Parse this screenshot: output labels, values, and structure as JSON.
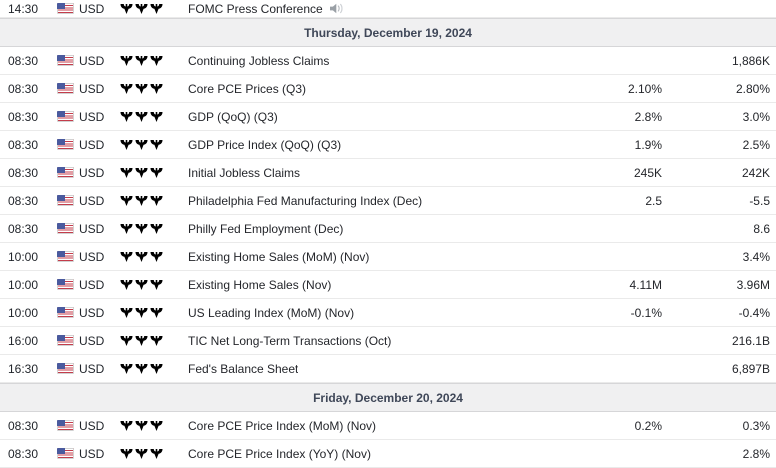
{
  "calendar": {
    "currency_default": "USD",
    "colors": {
      "bull_filled": "#8b9095",
      "bull_empty": "#d9dbde",
      "day_header_bg": "#f0f0f1",
      "day_header_text": "#3f4758",
      "row_border": "#eaeaea",
      "flag_red": "#c43c4b",
      "flag_blue": "#4a5a9e",
      "speech_icon_color": "#9aa0a6"
    },
    "rows": [
      {
        "type": "event",
        "time": "14:30",
        "currency": "USD",
        "flag": "us-flag-icon",
        "importance": 3,
        "event": "FOMC Press Conference",
        "speech": true,
        "forecast": "",
        "previous": "",
        "partial": true
      },
      {
        "type": "day",
        "label": "Thursday, December 19, 2024"
      },
      {
        "type": "event",
        "time": "08:30",
        "currency": "USD",
        "flag": "us-flag-icon",
        "importance": 2,
        "event": "Continuing Jobless Claims",
        "speech": false,
        "forecast": "",
        "previous": "1,886K"
      },
      {
        "type": "event",
        "time": "08:30",
        "currency": "USD",
        "flag": "us-flag-icon",
        "importance": 2,
        "event": "Core PCE Prices (Q3)",
        "speech": false,
        "forecast": "2.10%",
        "previous": "2.80%"
      },
      {
        "type": "event",
        "time": "08:30",
        "currency": "USD",
        "flag": "us-flag-icon",
        "importance": 3,
        "event": "GDP (QoQ) (Q3)",
        "speech": false,
        "forecast": "2.8%",
        "previous": "3.0%"
      },
      {
        "type": "event",
        "time": "08:30",
        "currency": "USD",
        "flag": "us-flag-icon",
        "importance": 2,
        "event": "GDP Price Index (QoQ) (Q3)",
        "speech": false,
        "forecast": "1.9%",
        "previous": "2.5%"
      },
      {
        "type": "event",
        "time": "08:30",
        "currency": "USD",
        "flag": "us-flag-icon",
        "importance": 3,
        "event": "Initial Jobless Claims",
        "speech": false,
        "forecast": "245K",
        "previous": "242K"
      },
      {
        "type": "event",
        "time": "08:30",
        "currency": "USD",
        "flag": "us-flag-icon",
        "importance": 3,
        "event": "Philadelphia Fed Manufacturing Index (Dec)",
        "speech": false,
        "forecast": "2.5",
        "previous": "-5.5"
      },
      {
        "type": "event",
        "time": "08:30",
        "currency": "USD",
        "flag": "us-flag-icon",
        "importance": 2,
        "event": "Philly Fed Employment (Dec)",
        "speech": false,
        "forecast": "",
        "previous": "8.6"
      },
      {
        "type": "event",
        "time": "10:00",
        "currency": "USD",
        "flag": "us-flag-icon",
        "importance": 2,
        "event": "Existing Home Sales (MoM) (Nov)",
        "speech": false,
        "forecast": "",
        "previous": "3.4%"
      },
      {
        "type": "event",
        "time": "10:00",
        "currency": "USD",
        "flag": "us-flag-icon",
        "importance": 3,
        "event": "Existing Home Sales (Nov)",
        "speech": false,
        "forecast": "4.11M",
        "previous": "3.96M"
      },
      {
        "type": "event",
        "time": "10:00",
        "currency": "USD",
        "flag": "us-flag-icon",
        "importance": 2,
        "event": "US Leading Index (MoM) (Nov)",
        "speech": false,
        "forecast": "-0.1%",
        "previous": "-0.4%"
      },
      {
        "type": "event",
        "time": "16:00",
        "currency": "USD",
        "flag": "us-flag-icon",
        "importance": 2,
        "event": "TIC Net Long-Term Transactions (Oct)",
        "speech": false,
        "forecast": "",
        "previous": "216.1B"
      },
      {
        "type": "event",
        "time": "16:30",
        "currency": "USD",
        "flag": "us-flag-icon",
        "importance": 2,
        "event": "Fed's Balance Sheet",
        "speech": false,
        "forecast": "",
        "previous": "6,897B"
      },
      {
        "type": "day",
        "label": "Friday, December 20, 2024"
      },
      {
        "type": "event",
        "time": "08:30",
        "currency": "USD",
        "flag": "us-flag-icon",
        "importance": 3,
        "event": "Core PCE Price Index (MoM) (Nov)",
        "speech": false,
        "forecast": "0.2%",
        "previous": "0.3%"
      },
      {
        "type": "event",
        "time": "08:30",
        "currency": "USD",
        "flag": "us-flag-icon",
        "importance": 3,
        "event": "Core PCE Price Index (YoY) (Nov)",
        "speech": false,
        "forecast": "",
        "previous": "2.8%"
      }
    ]
  }
}
